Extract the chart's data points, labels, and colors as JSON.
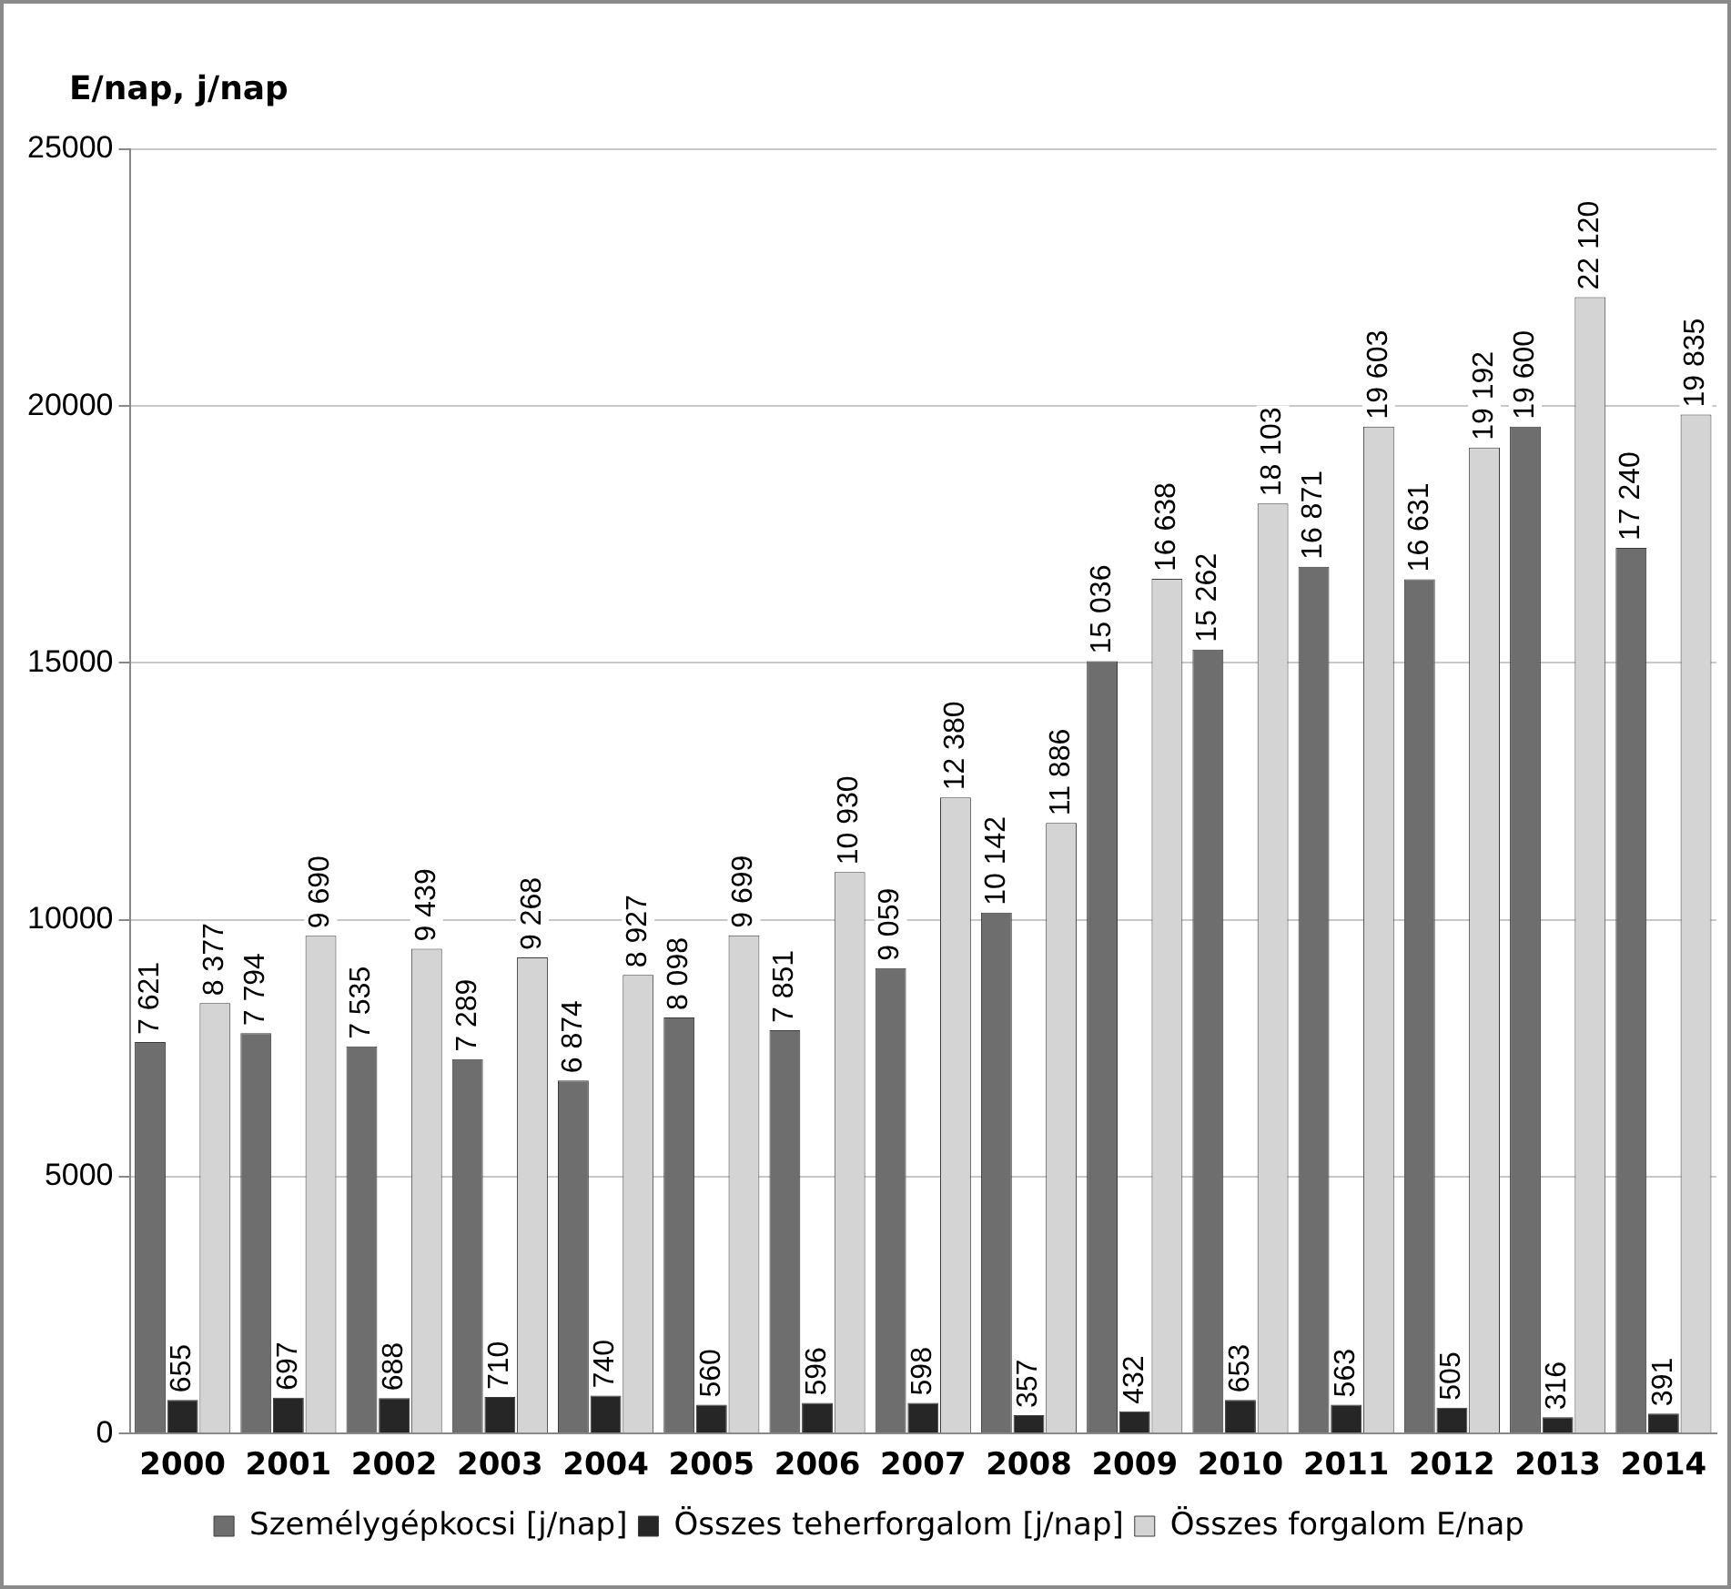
{
  "chart_data": {
    "type": "bar",
    "ylabel": "E/nap, j/nap",
    "categories": [
      "2000",
      "2001",
      "2002",
      "2003",
      "2004",
      "2005",
      "2006",
      "2007",
      "2008",
      "2009",
      "2010",
      "2011",
      "2012",
      "2013",
      "2014"
    ],
    "series": [
      {
        "name": "Személygépkocsi [j/nap]",
        "color": "#6e6e6e",
        "values": [
          7621,
          7794,
          7535,
          7289,
          6874,
          8098,
          7851,
          9059,
          10142,
          15036,
          15262,
          16871,
          16631,
          19600,
          17240
        ],
        "value_labels": [
          "7 621",
          "7 794",
          "7 535",
          "7 289",
          "6 874",
          "8 098",
          "7 851",
          "9 059",
          "10 142",
          "15 036",
          "15 262",
          "16 871",
          "16 631",
          "19 600",
          "17 240"
        ]
      },
      {
        "name": "Összes teherforgalom [j/nap]",
        "color": "#262626",
        "values": [
          655,
          697,
          688,
          710,
          740,
          560,
          596,
          598,
          357,
          432,
          653,
          563,
          505,
          316,
          391
        ],
        "value_labels": [
          "655",
          "697",
          "688",
          "710",
          "740",
          "560",
          "596",
          "598",
          "357",
          "432",
          "653",
          "563",
          "505",
          "316",
          "391"
        ]
      },
      {
        "name": "Összes forgalom E/nap",
        "color": "#d4d4d4",
        "values": [
          8377,
          9690,
          9439,
          9268,
          8927,
          9699,
          10930,
          12380,
          11886,
          16638,
          18103,
          19603,
          19192,
          22120,
          19835
        ],
        "value_labels": [
          "8 377",
          "9 690",
          "9 439",
          "9 268",
          "8 927",
          "9 699",
          "10 930",
          "12 380",
          "11 886",
          "16 638",
          "18 103",
          "19 603",
          "19 192",
          "22 120",
          "19 835"
        ]
      }
    ],
    "ylim": [
      0,
      25000
    ],
    "yticks": [
      0,
      5000,
      10000,
      15000,
      20000,
      25000
    ],
    "grid": "y",
    "legend": "bottom"
  }
}
